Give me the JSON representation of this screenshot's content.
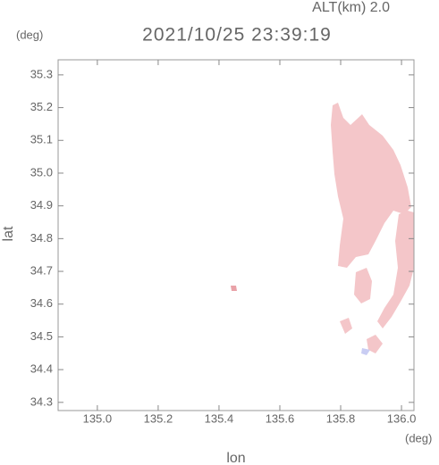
{
  "chart_data": {
    "type": "radar-map",
    "title": "2021/10/25 23:39:19",
    "altitude_label": "ALT(km) 2.0",
    "y_unit": "(deg)",
    "x_unit": "(deg)",
    "xlabel": "lon",
    "ylabel": "lat",
    "xlim": [
      134.871,
      136.041
    ],
    "ylim": [
      34.275,
      35.346
    ],
    "xticks": [
      {
        "value": 135.0,
        "label": "135.0"
      },
      135.2,
      135.4,
      135.6,
      135.8,
      {
        "value": 136.0,
        "label": "136.0"
      }
    ],
    "yticks": [
      34.3,
      34.4,
      34.5,
      34.6,
      34.7,
      34.8,
      34.9,
      {
        "value": 35.0,
        "label": "35.0"
      },
      35.1,
      35.2,
      35.3
    ],
    "color": "#f4c6c9"
  }
}
